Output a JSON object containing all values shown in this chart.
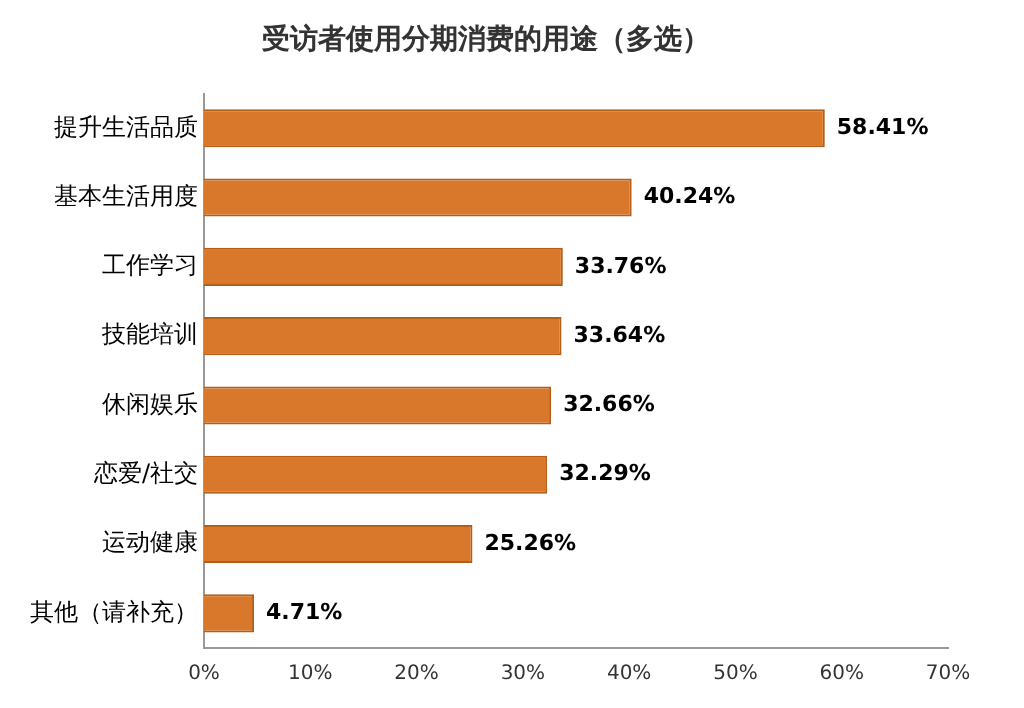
{
  "chart_data": {
    "type": "bar",
    "orientation": "horizontal",
    "title": "受访者使用分期消费的用途（多选）",
    "categories": [
      "提升生活品质",
      "基本生活用度",
      "工作学习",
      "技能培训",
      "休闲娱乐",
      "恋爱/社交",
      "运动健康",
      "其他（请补充）"
    ],
    "values": [
      58.41,
      40.24,
      33.76,
      33.64,
      32.66,
      32.29,
      25.26,
      4.71
    ],
    "value_labels": [
      "58.41%",
      "40.24%",
      "33.76%",
      "33.64%",
      "32.66%",
      "32.29%",
      "25.26%",
      "4.71%"
    ],
    "color": "#d9782a",
    "xlim": [
      0,
      70
    ],
    "xticks": [
      {
        "value": 0,
        "label": "0%"
      },
      {
        "value": 10,
        "label": "10%"
      },
      {
        "value": 20,
        "label": "20%"
      },
      {
        "value": 30,
        "label": "30%"
      },
      {
        "value": 40,
        "label": "40%"
      },
      {
        "value": 50,
        "label": "50%"
      },
      {
        "value": 60,
        "label": "60%"
      },
      {
        "value": 70,
        "label": "70%"
      }
    ],
    "grid": false,
    "legend": false
  }
}
